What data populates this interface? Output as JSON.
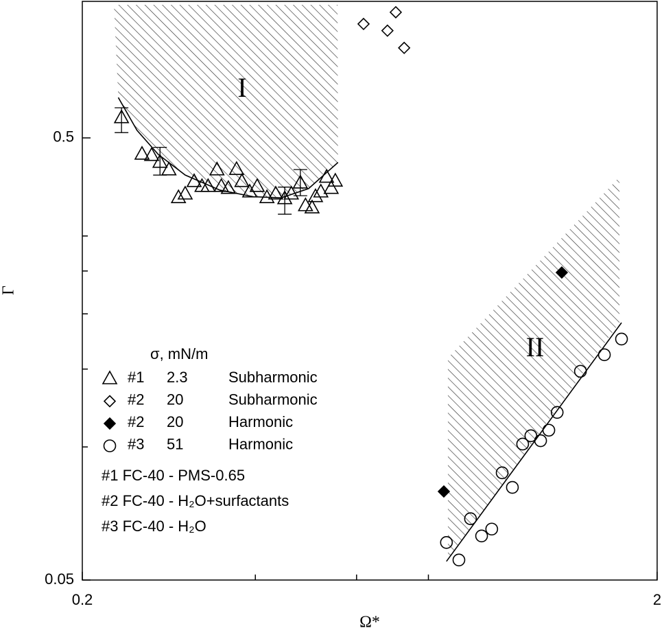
{
  "chart_data": {
    "type": "scatter",
    "x_label": "Ω*",
    "y_label": "Γ",
    "xlog": true,
    "ylog": true,
    "xlim": [
      0.2,
      2
    ],
    "ylim": [
      0.05,
      1
    ],
    "xticks": [
      0.2,
      2
    ],
    "xminor_ticks": [
      0.4,
      0.6,
      0.8
    ],
    "yticks": [
      0.05,
      0.5
    ],
    "yminor_ticks": [
      0.1,
      0.15,
      0.2,
      0.25,
      0.3
    ],
    "legend_title": "σ, mN/m",
    "series": [
      {
        "name": "#1",
        "sigma": 2.3,
        "mode": "Subharmonic",
        "marker": "triangle",
        "filled": false,
        "color": "#000000",
        "x": [
          0.234,
          0.254,
          0.264,
          0.273,
          0.283,
          0.294,
          0.302,
          0.313,
          0.323,
          0.331,
          0.343,
          0.349,
          0.359,
          0.371,
          0.379,
          0.391,
          0.403,
          0.419,
          0.434,
          0.45,
          0.462,
          0.479,
          0.489,
          0.502,
          0.509,
          0.52,
          0.532,
          0.542,
          0.551
        ],
        "values": [
          0.555,
          0.459,
          0.456,
          0.44,
          0.423,
          0.366,
          0.373,
          0.398,
          0.388,
          0.388,
          0.423,
          0.388,
          0.384,
          0.424,
          0.398,
          0.377,
          0.388,
          0.366,
          0.373,
          0.364,
          0.373,
          0.395,
          0.351,
          0.347,
          0.368,
          0.377,
          0.407,
          0.384,
          0.399
        ]
      },
      {
        "name": "#2",
        "sigma": 20,
        "mode": "Subharmonic",
        "marker": "diamond",
        "filled": false,
        "color": "#000000",
        "x": [
          0.617,
          0.679,
          0.702,
          0.726
        ],
        "values": [
          0.905,
          0.874,
          0.962,
          0.799
        ]
      },
      {
        "name": "#2",
        "sigma": 20,
        "mode": "Harmonic",
        "marker": "diamond",
        "filled": true,
        "color": "#000000",
        "x": [
          0.851,
          1.365
        ],
        "values": [
          0.0793,
          0.248
        ]
      },
      {
        "name": "#3",
        "sigma": 51,
        "mode": "Harmonic",
        "marker": "circle",
        "filled": false,
        "color": "#000000",
        "x": [
          0.86,
          0.904,
          0.947,
          0.99,
          1.031,
          1.075,
          1.12,
          1.167,
          1.206,
          1.254,
          1.296,
          1.34,
          1.471,
          1.619,
          1.734
        ],
        "values": [
          0.0608,
          0.0555,
          0.0688,
          0.0629,
          0.0652,
          0.0874,
          0.081,
          0.1015,
          0.106,
          0.1033,
          0.1091,
          0.1197,
          0.1483,
          0.1616,
          0.1754
        ]
      }
    ],
    "error_bars": [
      {
        "x": 0.234,
        "low": 0.514,
        "high": 0.585
      },
      {
        "x": 0.273,
        "low": 0.412,
        "high": 0.476
      },
      {
        "x": 0.45,
        "low": 0.336,
        "high": 0.387
      },
      {
        "x": 0.479,
        "low": 0.37,
        "high": 0.424
      }
    ],
    "curves": [
      {
        "x": [
          0.231,
          0.249,
          0.271,
          0.302,
          0.347,
          0.397,
          0.444,
          0.495,
          0.557
        ],
        "values": [
          0.617,
          0.52,
          0.459,
          0.412,
          0.381,
          0.368,
          0.366,
          0.384,
          0.44
        ]
      },
      {
        "x": [
          0.86,
          1.734
        ],
        "values": [
          0.0551,
          0.191
        ]
      }
    ],
    "regions": [
      {
        "label": "I",
        "x": [
          0.227,
          0.556,
          0.557,
          0.495,
          0.444,
          0.397,
          0.347,
          0.302,
          0.271,
          0.249,
          0.231
        ],
        "values": [
          1,
          1,
          0.44,
          0.384,
          0.366,
          0.368,
          0.381,
          0.412,
          0.459,
          0.52,
          0.617
        ]
      },
      {
        "label": "II",
        "x": [
          0.865,
          1.72,
          1.72,
          0.865
        ],
        "values": [
          0.159,
          0.408,
          0.191,
          0.0557
        ]
      }
    ],
    "notes": [
      "#1 FC-40 - PMS-0.65",
      "#2 FC-40 - H₂O+surfactants",
      "#3 FC-40 - H₂O"
    ]
  }
}
